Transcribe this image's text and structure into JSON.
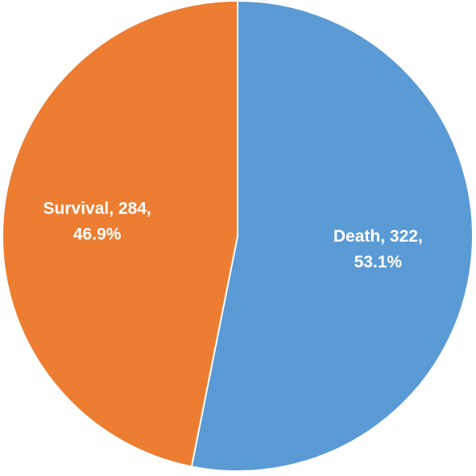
{
  "chart_data": {
    "type": "pie",
    "values": [
      322,
      284
    ],
    "value_labels": [
      [
        "Death, 322,",
        "53.1%"
      ],
      [
        "Survival, 284,",
        "46.9%"
      ]
    ],
    "colors": [
      "#5b9bd5",
      "#ed7d31"
    ]
  }
}
